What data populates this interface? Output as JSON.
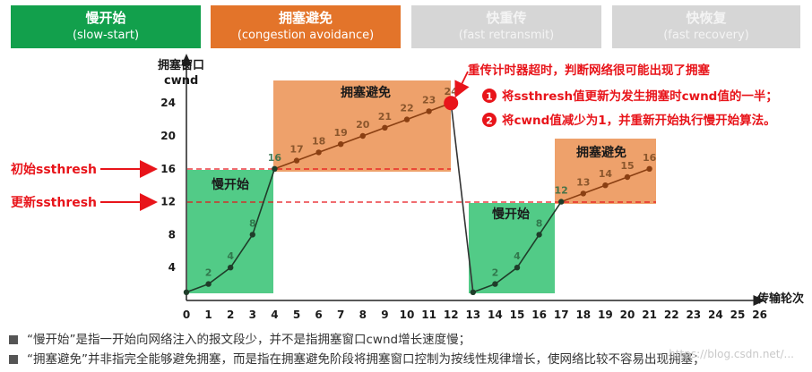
{
  "phases": [
    {
      "title": "慢开始",
      "subtitle": "(slow-start)",
      "state": "active",
      "color": "#12a04c"
    },
    {
      "title": "拥塞避免",
      "subtitle": "(congestion avoidance)",
      "state": "active",
      "color": "#e3742a"
    },
    {
      "title": "快重传",
      "subtitle": "(fast retransmit)",
      "state": "inactive",
      "color": "#d6d6d6"
    },
    {
      "title": "快恢复",
      "subtitle": "(fast recovery)",
      "state": "inactive",
      "color": "#d6d6d6"
    }
  ],
  "axes": {
    "ylabel_cn": "拥塞窗口",
    "ylabel_en": "cwnd",
    "xlabel": "传输轮次",
    "yticks": [
      "4",
      "8",
      "12",
      "16",
      "20",
      "24"
    ],
    "xticks": [
      "0",
      "1",
      "2",
      "3",
      "4",
      "5",
      "6",
      "7",
      "8",
      "9",
      "10",
      "11",
      "12",
      "13",
      "14",
      "15",
      "16",
      "17",
      "18",
      "19",
      "20",
      "21",
      "22",
      "23",
      "24",
      "25",
      "26"
    ]
  },
  "thresholds": {
    "initial_label": "初始ssthresh",
    "updated_label": "更新ssthresh",
    "initial_value": 16,
    "updated_value": 12
  },
  "regions": {
    "slowstart1": "慢开始",
    "congestion1": "拥塞避免",
    "slowstart2": "慢开始",
    "congestion2": "拥塞避免"
  },
  "chart_data": {
    "type": "line",
    "xlabel": "传输轮次",
    "ylabel": "拥塞窗口 cwnd",
    "xlim": [
      0,
      26
    ],
    "ylim": [
      0,
      26
    ],
    "series": [
      {
        "x": [
          0,
          1,
          2,
          3,
          4,
          5,
          6,
          7,
          8,
          9,
          10,
          11,
          12,
          13,
          14,
          15,
          16,
          17,
          18,
          19,
          20,
          21
        ],
        "y": [
          1,
          2,
          4,
          8,
          16,
          17,
          18,
          19,
          20,
          21,
          22,
          23,
          24,
          1,
          2,
          4,
          8,
          12,
          13,
          14,
          15,
          16
        ],
        "point_labels": [
          "",
          "2",
          "4",
          "8",
          "16",
          "17",
          "18",
          "19",
          "20",
          "21",
          "22",
          "23",
          "24",
          "",
          "2",
          "4",
          "8",
          "12",
          "13",
          "14",
          "15",
          "16"
        ]
      }
    ],
    "timeout_point": {
      "x": 12,
      "y": 24
    }
  },
  "annotation": {
    "title": "重传计时器超时，判断网络很可能出现了拥塞",
    "items": [
      {
        "num": "1",
        "text": "将ssthresh值更新为发生拥塞时cwnd值的一半；"
      },
      {
        "num": "2",
        "text": "将cwnd值减少为1，并重新开始执行慢开始算法。"
      }
    ]
  },
  "notes": [
    "“慢开始”是指一开始向网络注入的报文段少，并不是指拥塞窗口cwnd增长速度慢；",
    "“拥塞避免”并非指完全能够避免拥塞，而是指在拥塞避免阶段将拥塞窗口控制为按线性规律增长，使网络比较不容易出现拥塞；"
  ],
  "watermark": "https://blog.csdn.net/..."
}
